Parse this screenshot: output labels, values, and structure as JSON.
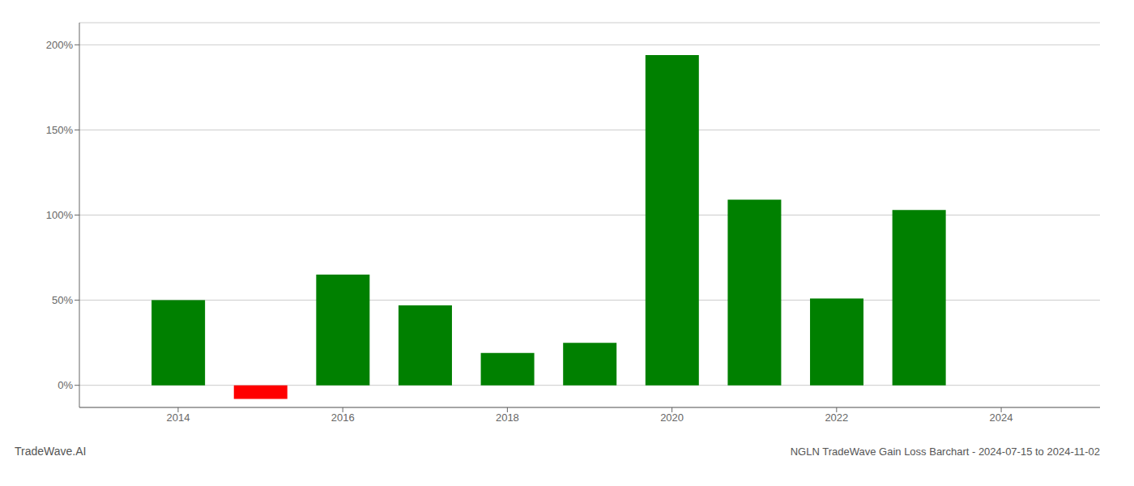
{
  "chart_data": {
    "type": "bar",
    "title": "NGLN TradeWave Gain Loss Barchart - 2024-07-15 to 2024-11-02",
    "annotations": [
      "TradeWave.AI"
    ],
    "x": [
      2014,
      2015,
      2016,
      2017,
      2018,
      2019,
      2020,
      2021,
      2022,
      2023
    ],
    "values": [
      0.5,
      -0.08,
      0.65,
      0.47,
      0.19,
      0.25,
      1.94,
      1.09,
      0.51,
      1.03
    ],
    "colors": [
      "#008000",
      "#ff0000",
      "#008000",
      "#008000",
      "#008000",
      "#008000",
      "#008000",
      "#008000",
      "#008000",
      "#008000"
    ],
    "xlim": [
      2012.8,
      2025.2
    ],
    "xticks": [
      2014,
      2016,
      2018,
      2020,
      2022,
      2024
    ],
    "ylim": [
      -0.13,
      2.13
    ],
    "yticks": [
      {
        "value": 0.0,
        "label": "0%"
      },
      {
        "value": 0.5,
        "label": "50%"
      },
      {
        "value": 1.0,
        "label": "100%"
      },
      {
        "value": 1.5,
        "label": "150%"
      },
      {
        "value": 2.0,
        "label": "200%"
      }
    ],
    "grid": true
  }
}
